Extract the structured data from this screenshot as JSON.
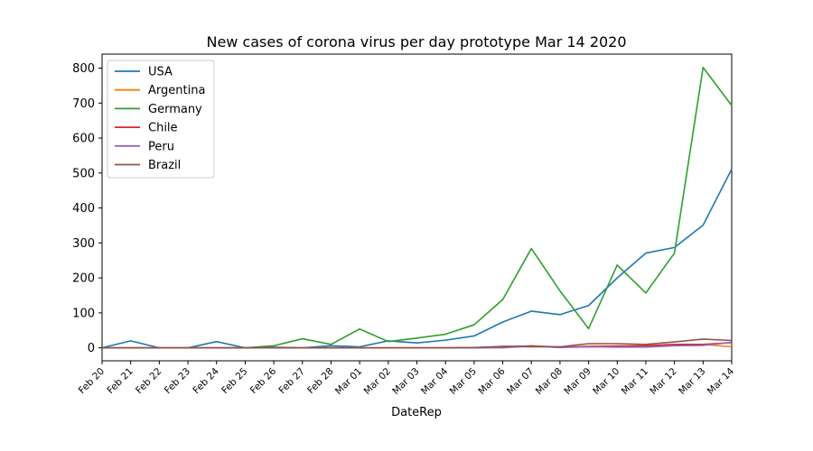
{
  "chart_data": {
    "type": "line",
    "title": "New cases of corona virus per day prototype  Mar 14 2020",
    "xlabel": "DateRep",
    "ylabel": "",
    "categories": [
      "Feb 20",
      "Feb 21",
      "Feb 22",
      "Feb 23",
      "Feb 24",
      "Feb 25",
      "Feb 26",
      "Feb 27",
      "Feb 28",
      "Mar 01",
      "Mar 02",
      "Mar 03",
      "Mar 04",
      "Mar 05",
      "Mar 06",
      "Mar 07",
      "Mar 08",
      "Mar 09",
      "Mar 10",
      "Mar 11",
      "Mar 12",
      "Mar 13",
      "Mar 14"
    ],
    "yticks": [
      0,
      100,
      200,
      300,
      400,
      500,
      600,
      700,
      800
    ],
    "ylim": [
      -37,
      840
    ],
    "grid": false,
    "legend_position": "upper-left",
    "series": [
      {
        "name": "USA",
        "color": "#1f77b4",
        "values": [
          0,
          20,
          0,
          0,
          18,
          0,
          2,
          0,
          6,
          3,
          20,
          14,
          22,
          34,
          74,
          105,
          95,
          121,
          200,
          271,
          287,
          351,
          511
        ]
      },
      {
        "name": "Argentina",
        "color": "#ff7f0e",
        "values": [
          0,
          0,
          0,
          0,
          0,
          0,
          0,
          0,
          0,
          0,
          0,
          0,
          0,
          1,
          0,
          6,
          1,
          5,
          5,
          5,
          9,
          10,
          3
        ]
      },
      {
        "name": "Germany",
        "color": "#2ca02c",
        "values": [
          0,
          0,
          0,
          0,
          0,
          0,
          6,
          26,
          10,
          54,
          18,
          28,
          39,
          66,
          138,
          284,
          163,
          55,
          237,
          157,
          271,
          802,
          693
        ]
      },
      {
        "name": "Chile",
        "color": "#d62728",
        "values": [
          0,
          0,
          0,
          0,
          0,
          0,
          0,
          0,
          0,
          0,
          0,
          0,
          0,
          0,
          4,
          3,
          3,
          3,
          5,
          6,
          10,
          10,
          15
        ]
      },
      {
        "name": "Peru",
        "color": "#9467bd",
        "values": [
          0,
          0,
          0,
          0,
          0,
          0,
          0,
          0,
          0,
          0,
          0,
          0,
          0,
          0,
          1,
          5,
          1,
          3,
          2,
          2,
          6,
          7,
          16
        ]
      },
      {
        "name": "Brazil",
        "color": "#8c564b",
        "values": [
          0,
          0,
          0,
          0,
          0,
          0,
          1,
          0,
          0,
          0,
          0,
          0,
          0,
          1,
          4,
          5,
          3,
          12,
          12,
          10,
          17,
          25,
          21
        ]
      }
    ]
  }
}
